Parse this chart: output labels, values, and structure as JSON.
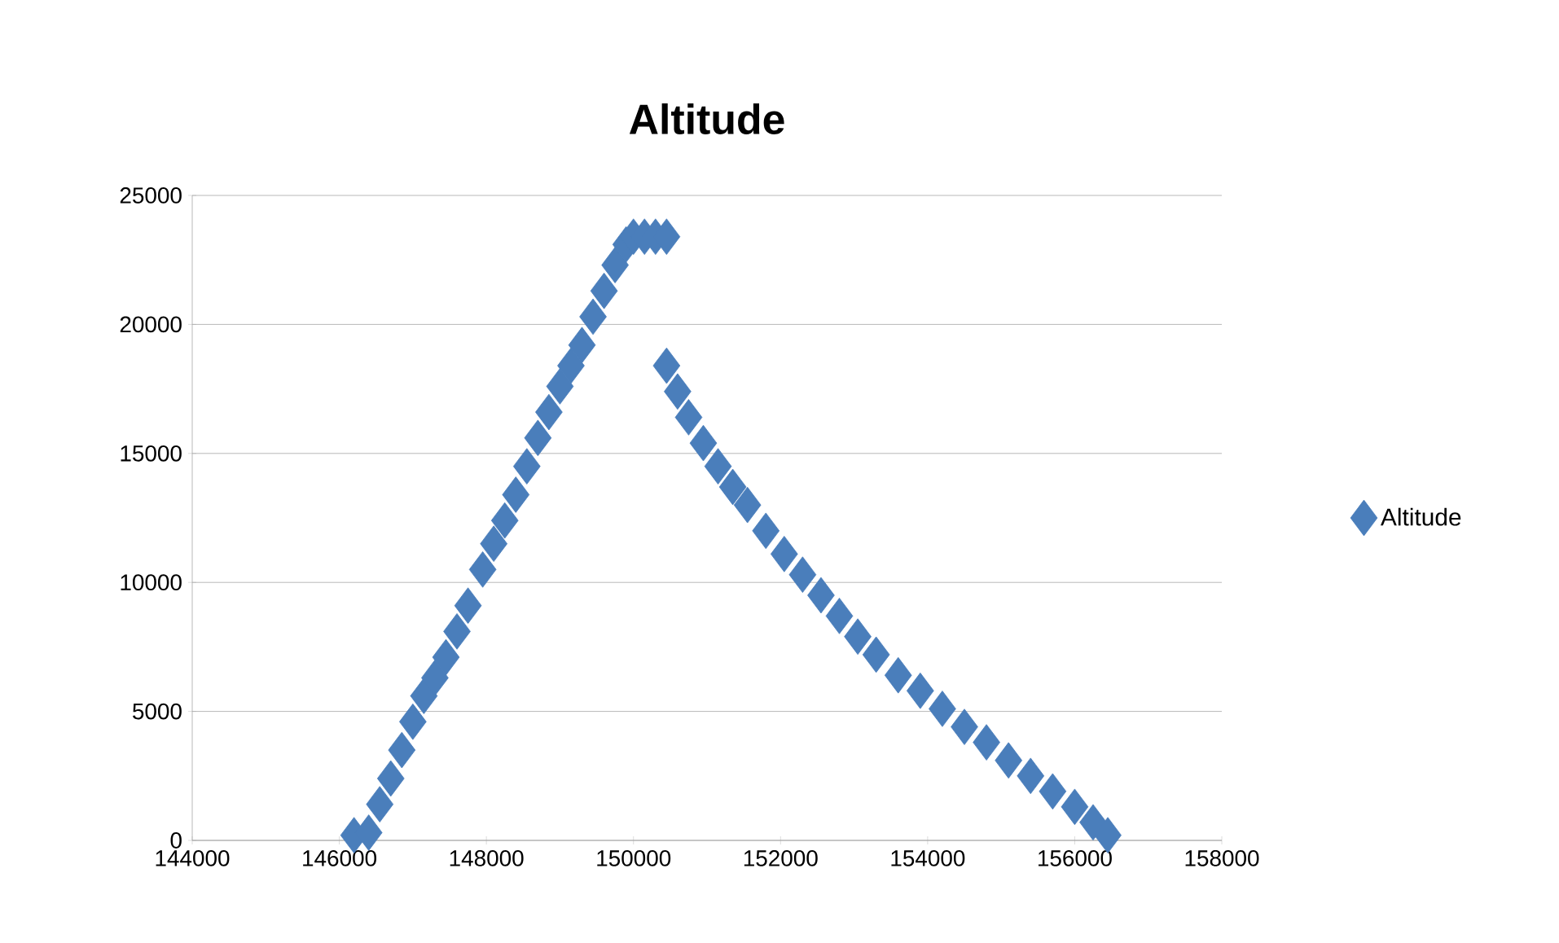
{
  "chart_data": {
    "type": "scatter",
    "title": "Altitude",
    "xlim": [
      144000,
      158000
    ],
    "xticks": [
      144000,
      146000,
      148000,
      150000,
      152000,
      154000,
      156000,
      158000
    ],
    "ylim": [
      0,
      25000
    ],
    "yticks": [
      0,
      5000,
      10000,
      15000,
      20000,
      25000
    ],
    "grid": "y",
    "legend": "right",
    "marker": "diamond",
    "series": [
      {
        "name": "Altitude",
        "color": "#4a7ebb",
        "x": [
          146200,
          146400,
          146550,
          146700,
          146850,
          147000,
          147150,
          147300,
          147450,
          147600,
          147750,
          147950,
          148100,
          148250,
          148400,
          148550,
          148700,
          148850,
          149000,
          149150,
          149300,
          149450,
          149600,
          149750,
          149900,
          150000,
          150150,
          150300,
          150450,
          150450,
          150600,
          150750,
          150950,
          151150,
          151350,
          151550,
          151800,
          152050,
          152300,
          152550,
          152800,
          153050,
          153300,
          153600,
          153900,
          154200,
          154500,
          154800,
          155100,
          155400,
          155700,
          156000,
          156250,
          156450
        ],
        "values": [
          200,
          300,
          1400,
          2400,
          3500,
          4600,
          5600,
          6300,
          7100,
          8100,
          9100,
          10500,
          11500,
          12400,
          13400,
          14500,
          15600,
          16600,
          17600,
          18400,
          19200,
          20300,
          21300,
          22300,
          23100,
          23400,
          23400,
          23400,
          23400,
          18400,
          17400,
          16400,
          15400,
          14500,
          13700,
          13000,
          12000,
          11100,
          10300,
          9500,
          8700,
          7900,
          7200,
          6400,
          5800,
          5100,
          4400,
          3800,
          3100,
          2500,
          1900,
          1300,
          700,
          200
        ]
      }
    ]
  }
}
